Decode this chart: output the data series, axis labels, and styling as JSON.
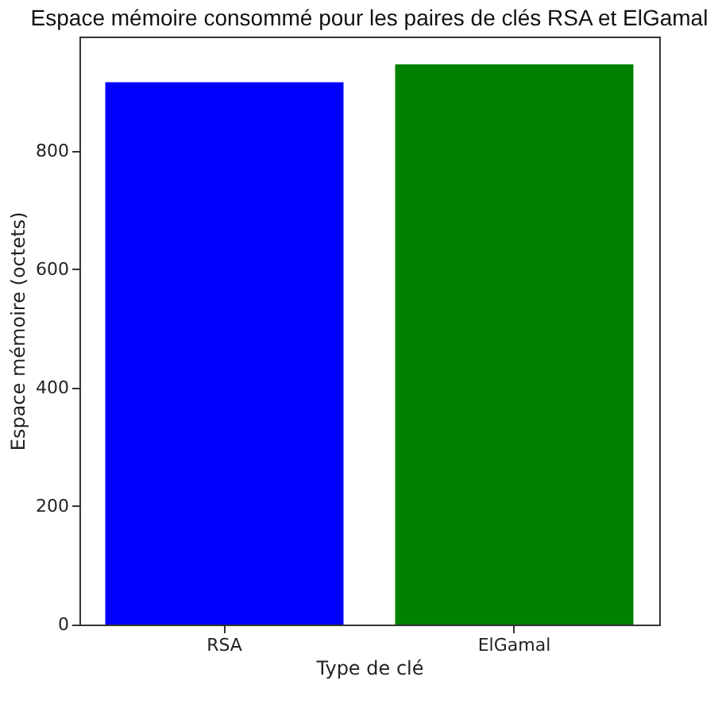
{
  "chart_data": {
    "type": "bar",
    "title": "Espace mémoire consommé pour les paires de clés RSA et ElGamal",
    "xlabel": "Type de clé",
    "ylabel": "Espace mémoire (octets)",
    "categories": [
      "RSA",
      "ElGamal"
    ],
    "values": [
      916,
      946
    ],
    "colors": [
      "#0000ff",
      "#008000"
    ],
    "ylim": [
      0,
      993
    ],
    "yticks": [
      0,
      200,
      400,
      600,
      800
    ],
    "grid": false
  }
}
